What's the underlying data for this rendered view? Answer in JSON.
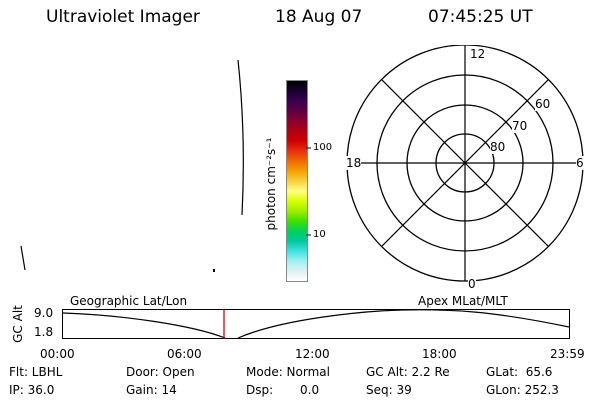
{
  "header": {
    "title": "Ultraviolet Imager",
    "date": "18 Aug 07",
    "time": "07:45:25 UT"
  },
  "colorbar": {
    "unit_label": "photon cm⁻²s⁻¹",
    "ticks": [
      "100",
      "10"
    ],
    "colors": [
      "#000000",
      "#1a0030",
      "#3a0050",
      "#600040",
      "#8b0030",
      "#b00010",
      "#d00000",
      "#e83010",
      "#f06a00",
      "#f4a000",
      "#f6d040",
      "#ffff80",
      "#d8ff00",
      "#9cf000",
      "#40e000",
      "#00d060",
      "#00c8a0",
      "#40e0e0",
      "#a0f0f0",
      "#e0f0f0",
      "#ffffff"
    ]
  },
  "polar": {
    "labels": {
      "top": "12",
      "bottom": "0",
      "left": "18",
      "right": "6"
    },
    "rings": [
      "80",
      "70",
      "60"
    ]
  },
  "timeline": {
    "left_title": "Geographic Lat/Lon",
    "right_title": "Apex MLat/MLT",
    "y_axis_label": "GC Alt",
    "y_ticks": [
      "9.0",
      "1.8"
    ],
    "x_ticks": [
      "00:00",
      "06:00",
      "12:00",
      "18:00",
      "23:59"
    ],
    "marker_color": "#e00000"
  },
  "status": {
    "flt": "Flt: LBHL",
    "ip": "IP: 36.0",
    "door": "Door: Open",
    "gain": "Gain: 14",
    "mode": "Mode: Normal",
    "dsp_label": "Dsp:",
    "dsp_value": "0.0",
    "gc_alt": "GC Alt: 2.2 Re",
    "seq": "Seq: 39",
    "glat": "GLat:  65.6",
    "glon": "GLon: 252.3"
  }
}
